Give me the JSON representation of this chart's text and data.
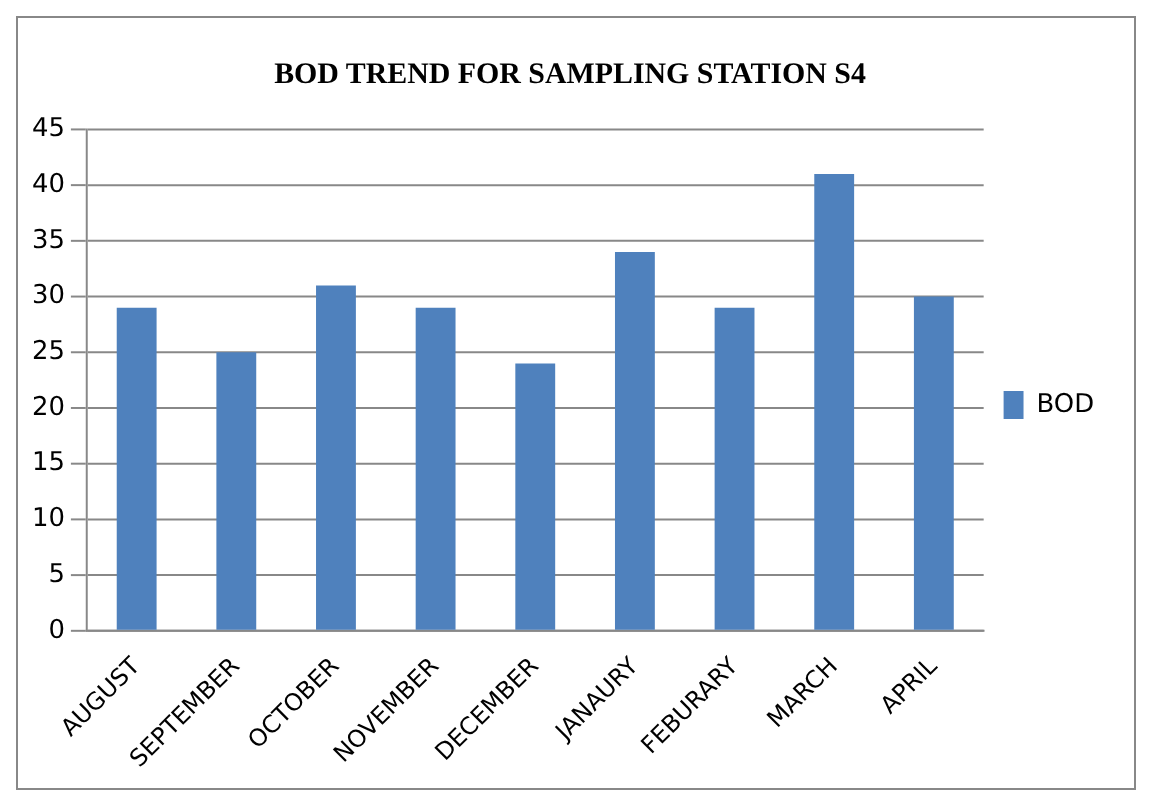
{
  "chart_data": {
    "type": "bar",
    "title": "BOD TREND FOR SAMPLING STATION S4",
    "categories": [
      "AUGUST",
      "SEPTEMBER",
      "OCTOBER",
      "NOVEMBER",
      "DECEMBER",
      "JANAURY",
      "FEBURARY",
      "MARCH",
      "APRIL"
    ],
    "series": [
      {
        "name": "BOD",
        "color": "#4f81bd",
        "values": [
          29,
          25,
          31,
          29,
          24,
          34,
          29,
          41,
          30
        ]
      }
    ],
    "ylim": [
      0,
      45
    ],
    "yticks": [
      0,
      5,
      10,
      15,
      20,
      25,
      30,
      35,
      40,
      45
    ],
    "grid": "y",
    "legend": "right"
  }
}
